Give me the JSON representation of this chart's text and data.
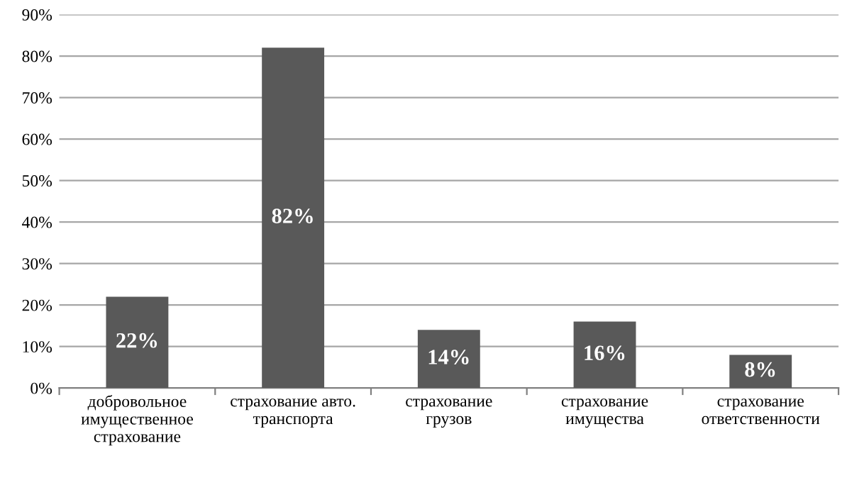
{
  "chart_data": {
    "type": "bar",
    "categories": [
      "добровольное\nимущественное\nстрахование",
      "страхование авто.\nтранспорта",
      "страхование\nгрузов",
      "страхование\nимущества",
      "страхование\nответственности"
    ],
    "values": [
      22,
      82,
      14,
      16,
      8
    ],
    "value_labels": [
      "22%",
      "82%",
      "14%",
      "16%",
      "8%"
    ],
    "color": "#595959",
    "ylim": [
      0,
      90
    ],
    "yticks": [
      {
        "value": 0,
        "label": "0%"
      },
      {
        "value": 10,
        "label": "10%"
      },
      {
        "value": 20,
        "label": "20%"
      },
      {
        "value": 30,
        "label": "30%"
      },
      {
        "value": 40,
        "label": "40%"
      },
      {
        "value": 50,
        "label": "50%"
      },
      {
        "value": 60,
        "label": "60%"
      },
      {
        "value": 70,
        "label": "70%"
      },
      {
        "value": 80,
        "label": "80%"
      },
      {
        "value": 90,
        "label": "90%"
      }
    ],
    "grid": "y"
  }
}
